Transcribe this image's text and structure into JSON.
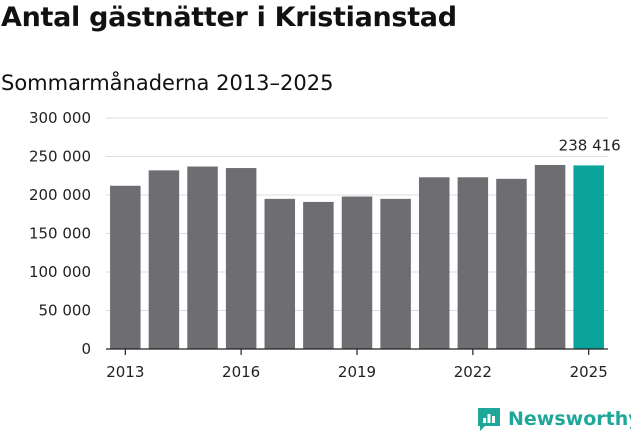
{
  "title": "Antal gästnätter i Kristianstad",
  "subtitle": "Sommarmånaderna 2013–2025",
  "brand": {
    "name": "Newsworthy",
    "icon": "newsworthy-logo-icon",
    "color": "#1fa89a"
  },
  "colors": {
    "bar": "#6e6d72",
    "highlight": "#0aa39a",
    "grid": "#dddddd",
    "axis": "#222222"
  },
  "chart_data": {
    "type": "bar",
    "title": "Antal gästnätter i Kristianstad",
    "subtitle": "Sommarmånaderna 2013–2025",
    "categories": [
      "2013",
      "2014",
      "2015",
      "2016",
      "2017",
      "2018",
      "2019",
      "2020",
      "2021",
      "2022",
      "2023",
      "2024",
      "2025"
    ],
    "values": [
      212000,
      232000,
      237000,
      235000,
      195000,
      191000,
      198000,
      195000,
      223000,
      223000,
      221000,
      239000,
      238416
    ],
    "highlight_index": 12,
    "data_labels": [
      {
        "index": 12,
        "text": "238 416"
      }
    ],
    "x_tick_labels": [
      {
        "index": 0,
        "text": "2013"
      },
      {
        "index": 3,
        "text": "2016"
      },
      {
        "index": 6,
        "text": "2019"
      },
      {
        "index": 9,
        "text": "2022"
      },
      {
        "index": 12,
        "text": "2025"
      }
    ],
    "y_ticks": [
      {
        "value": 0,
        "label": "0"
      },
      {
        "value": 50000,
        "label": "50 000"
      },
      {
        "value": 100000,
        "label": "100 000"
      },
      {
        "value": 150000,
        "label": "150 000"
      },
      {
        "value": 200000,
        "label": "200 000"
      },
      {
        "value": 250000,
        "label": "250 000"
      },
      {
        "value": 300000,
        "label": "300 000"
      }
    ],
    "ylim": [
      0,
      300000
    ],
    "grid": true,
    "legend": "none"
  }
}
